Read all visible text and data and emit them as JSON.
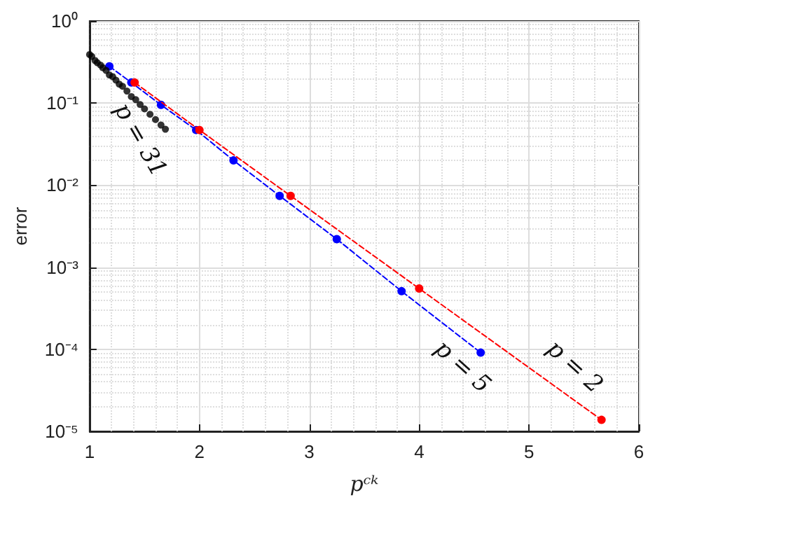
{
  "chart_data": {
    "type": "line",
    "xlabel": "pᶜᵏ",
    "ylabel": "error",
    "log": "y",
    "grid": true,
    "xlim": [
      1,
      6
    ],
    "xticks": [
      1,
      2,
      3,
      4,
      5,
      6
    ],
    "ylim": [
      1e-05,
      1
    ],
    "yticks": [
      {
        "value": 1e-05,
        "label": "10⁻⁵"
      },
      {
        "value": 0.0001,
        "label": "10⁻⁴"
      },
      {
        "value": 0.001,
        "label": "10⁻³"
      },
      {
        "value": 0.01,
        "label": "10⁻²"
      },
      {
        "value": 0.1,
        "label": "10⁻¹"
      },
      {
        "value": 1,
        "label": "10⁰"
      }
    ],
    "series": [
      {
        "type": "scatter",
        "color": "#000000",
        "marker": "circle",
        "x": [
          1.0,
          1.02,
          1.05,
          1.07,
          1.1,
          1.12,
          1.15,
          1.18,
          1.21,
          1.24,
          1.27,
          1.3,
          1.34,
          1.38,
          1.42,
          1.46,
          1.5,
          1.55,
          1.6,
          1.65,
          1.69
        ],
        "values": [
          0.39,
          0.37,
          0.33,
          0.31,
          0.29,
          0.27,
          0.25,
          0.22,
          0.21,
          0.19,
          0.17,
          0.16,
          0.14,
          0.12,
          0.11,
          0.096,
          0.085,
          0.073,
          0.063,
          0.054,
          0.048
        ]
      },
      {
        "color": "#ff0000",
        "marker": "circle",
        "line_style": "dashed",
        "x": [
          1.41,
          2,
          2.83,
          4,
          5.66
        ],
        "values": [
          0.178,
          0.047,
          0.0074,
          0.00055,
          1.38e-05
        ]
      },
      {
        "color": "#0000ff",
        "marker": "circle",
        "line_style": "dashed",
        "x": [
          1.18,
          1.38,
          1.65,
          1.97,
          2.31,
          2.73,
          3.25,
          3.84,
          4.56
        ],
        "values": [
          0.28,
          0.178,
          0.095,
          0.047,
          0.02,
          0.0074,
          0.0022,
          0.00051,
          9.1e-05
        ]
      }
    ],
    "annotations": [
      "p = 31",
      "p = 5",
      "p = 2"
    ]
  }
}
